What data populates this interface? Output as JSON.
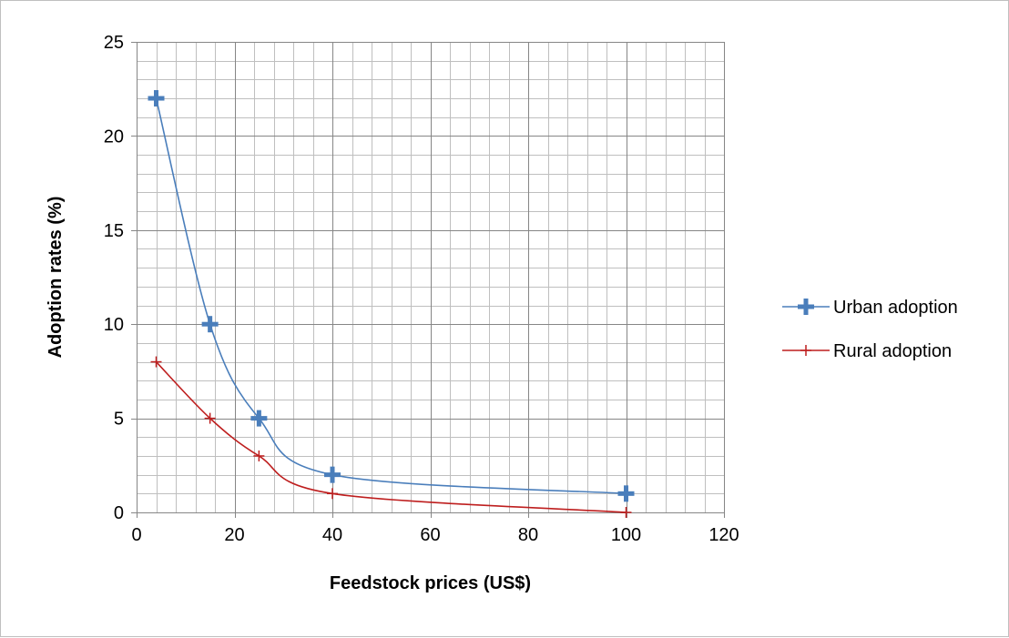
{
  "chart_data": {
    "type": "scatter",
    "title": "",
    "xlabel": "Feedstock prices (US$)",
    "ylabel": "Adoption rates (%)",
    "xlim": [
      0,
      120
    ],
    "ylim": [
      0,
      25
    ],
    "x_ticks": [
      0,
      20,
      40,
      60,
      80,
      100,
      120
    ],
    "y_ticks": [
      0,
      5,
      10,
      15,
      20,
      25
    ],
    "grid": "major and minor",
    "legend_position": "right",
    "series": [
      {
        "name": "Urban adoption",
        "color": "#4a7ebb",
        "marker": "bold-cross",
        "line": "smooth",
        "x": [
          4,
          15,
          25,
          40,
          100
        ],
        "y": [
          22,
          10,
          5,
          2,
          1
        ]
      },
      {
        "name": "Rural adoption",
        "color": "#be1e1e",
        "marker": "thin-cross",
        "line": "smooth",
        "x": [
          4,
          15,
          25,
          40,
          100
        ],
        "y": [
          8,
          5,
          3,
          1,
          0
        ]
      }
    ]
  }
}
